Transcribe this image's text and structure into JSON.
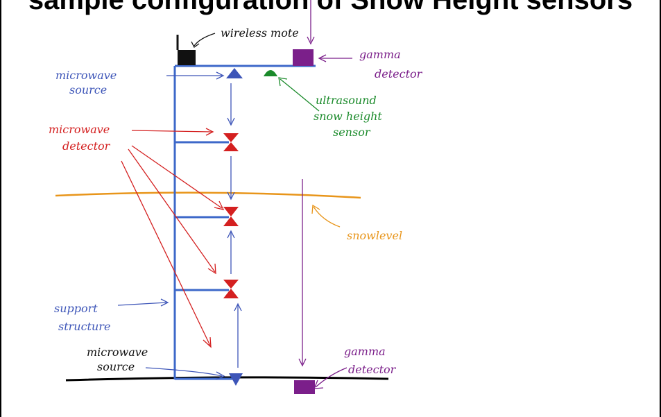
{
  "title": "sample configuration of Snow Height sensors",
  "labels": {
    "wireless_mote": "wireless mote",
    "gamma_detector_top": [
      "gamma",
      "detector"
    ],
    "microwave_source_top": [
      "microwave",
      "source"
    ],
    "ultrasound_sensor": [
      "ultrasound",
      "snow height",
      "sensor"
    ],
    "microwave_detector": [
      "microwave",
      "detector"
    ],
    "snowlevel": "snowlevel",
    "support_structure": [
      "support",
      "structure"
    ],
    "microwave_source_bottom": [
      "microwave",
      "source"
    ],
    "gamma_detector_bottom": [
      "gamma",
      "detector"
    ]
  },
  "colors": {
    "structure": "#3d68c9",
    "mote": "#111111",
    "gamma": "#7b1f8a",
    "microwave_source": "#3d55b8",
    "ultrasound": "#1a8a2a",
    "microwave_detector": "#d42020",
    "snow": "#e8951a",
    "ground": "#000000"
  }
}
